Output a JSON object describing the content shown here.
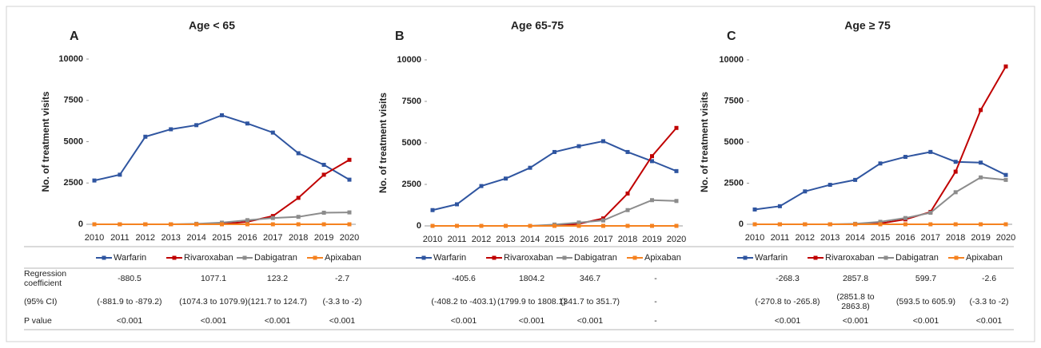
{
  "chart_data": [
    {
      "type": "line",
      "panel": "A",
      "title": "Age < 65",
      "ylabel": "No. of treatment visits",
      "categories": [
        "2010",
        "2011",
        "2012",
        "2013",
        "2014",
        "2015",
        "2016",
        "2017",
        "2018",
        "2019",
        "2020"
      ],
      "series": [
        {
          "name": "Warfarin",
          "color": "#2f55a0",
          "values": [
            2650,
            3000,
            5300,
            5750,
            6000,
            6600,
            6100,
            5550,
            4300,
            3600,
            2700
          ]
        },
        {
          "name": "Rivaroxaban",
          "color": "#c00000",
          "values": [
            0,
            0,
            0,
            0,
            0,
            20,
            150,
            500,
            1600,
            3000,
            3900
          ]
        },
        {
          "name": "Dabigatran",
          "color": "#8c8c8c",
          "values": [
            0,
            0,
            0,
            0,
            30,
            100,
            250,
            380,
            450,
            700,
            720
          ]
        },
        {
          "name": "Apixaban",
          "color": "#f58220",
          "values": [
            0,
            0,
            0,
            0,
            0,
            0,
            0,
            0,
            0,
            0,
            0
          ]
        }
      ],
      "ylim": [
        0,
        10000
      ],
      "yticks": [
        0,
        2500,
        5000,
        7500,
        10000
      ]
    },
    {
      "type": "line",
      "panel": "B",
      "title": "Age 65-75",
      "ylabel": "No. of treatment visits",
      "categories": [
        "2010",
        "2011",
        "2012",
        "2013",
        "2014",
        "2015",
        "2016",
        "2017",
        "2018",
        "2019",
        "2020"
      ],
      "series": [
        {
          "name": "Warfarin",
          "color": "#2f55a0",
          "values": [
            950,
            1300,
            2400,
            2850,
            3500,
            4450,
            4800,
            5100,
            4450,
            3900,
            3300
          ]
        },
        {
          "name": "Rivaroxaban",
          "color": "#c00000",
          "values": [
            0,
            0,
            0,
            0,
            0,
            20,
            120,
            450,
            1950,
            4200,
            5900
          ]
        },
        {
          "name": "Dabigatran",
          "color": "#8c8c8c",
          "values": [
            0,
            0,
            0,
            0,
            0,
            80,
            200,
            330,
            950,
            1550,
            1500
          ]
        },
        {
          "name": "Apixaban",
          "color": "#f58220",
          "values": [
            0,
            0,
            0,
            0,
            0,
            0,
            0,
            0,
            0,
            0,
            0
          ]
        }
      ],
      "ylim": [
        0,
        10000
      ],
      "yticks": [
        0,
        2500,
        5000,
        7500,
        10000
      ]
    },
    {
      "type": "line",
      "panel": "C",
      "title": "Age ≥ 75",
      "ylabel": "No. of treatment visits",
      "categories": [
        "2010",
        "2011",
        "2012",
        "2013",
        "2014",
        "2015",
        "2016",
        "2017",
        "2018",
        "2019",
        "2020"
      ],
      "series": [
        {
          "name": "Warfarin",
          "color": "#2f55a0",
          "values": [
            900,
            1100,
            2000,
            2400,
            2700,
            3700,
            4100,
            4400,
            3800,
            3750,
            3000
          ]
        },
        {
          "name": "Rivaroxaban",
          "color": "#c00000",
          "values": [
            0,
            0,
            0,
            0,
            0,
            50,
            300,
            750,
            3200,
            6950,
            9600
          ]
        },
        {
          "name": "Dabigatran",
          "color": "#8c8c8c",
          "values": [
            0,
            0,
            0,
            0,
            30,
            150,
            380,
            700,
            1950,
            2850,
            2700
          ]
        },
        {
          "name": "Apixaban",
          "color": "#f58220",
          "values": [
            0,
            0,
            0,
            0,
            0,
            0,
            0,
            0,
            0,
            0,
            0
          ]
        }
      ],
      "ylim": [
        0,
        10000
      ],
      "yticks": [
        0,
        2500,
        5000,
        7500,
        10000
      ]
    }
  ],
  "table": {
    "row_labels": [
      "Regression coefficient",
      "(95% CI)",
      "P value"
    ],
    "panels": [
      [
        [
          "-880.5",
          "1077.1",
          "123.2",
          "-2.7"
        ],
        [
          "(-881.9 to -879.2)",
          "(1074.3 to 1079.9)",
          "(121.7 to 124.7)",
          "(-3.3 to -2)"
        ],
        [
          "<0.001",
          "<0.001",
          "<0.001",
          "<0.001"
        ]
      ],
      [
        [
          "-405.6",
          "1804.2",
          "346.7",
          "-"
        ],
        [
          "(-408.2 to -403.1)",
          "(1799.9 to 1808.1)",
          "(341.7 to 351.7)",
          "-"
        ],
        [
          "<0.001",
          "<0.001",
          "<0.001",
          "-"
        ]
      ],
      [
        [
          "-268.3",
          "2857.8",
          "599.7",
          "-2.6"
        ],
        [
          "(-270.8 to -265.8)",
          "(2851.8 to 2863.8)",
          "(593.5 to 605.9)",
          "(-3.3 to -2)"
        ],
        [
          "<0.001",
          "<0.001",
          "<0.001",
          "<0.001"
        ]
      ]
    ]
  }
}
